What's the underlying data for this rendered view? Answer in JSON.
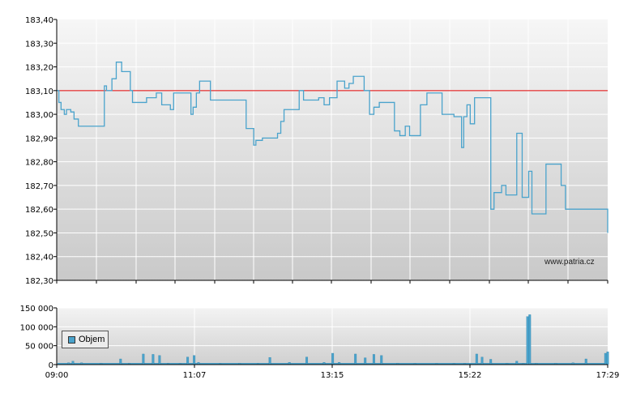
{
  "watermark": "www.patria.cz",
  "legend_label": "Objem",
  "colors": {
    "price_line": "#4aa3cc",
    "reference_line": "#e00000",
    "volume_bar": "#4aa3cc"
  },
  "chart_data": [
    {
      "type": "line",
      "title": "",
      "ylim": [
        182.3,
        183.4
      ],
      "y_ticks": [
        "183,40",
        "183,30",
        "183,20",
        "183,10",
        "183,00",
        "182,90",
        "182,80",
        "182,70",
        "182,60",
        "182,50",
        "182,40",
        "182,30"
      ],
      "reference_line": 183.1,
      "x_start": "09:00",
      "x_end": "17:29",
      "series": [
        {
          "points": [
            [
              "09:00",
              183.1
            ],
            [
              "09:02",
              183.05
            ],
            [
              "09:04",
              183.02
            ],
            [
              "09:07",
              183.0
            ],
            [
              "09:09",
              183.02
            ],
            [
              "09:13",
              183.01
            ],
            [
              "09:16",
              182.98
            ],
            [
              "09:20",
              182.95
            ],
            [
              "09:42",
              182.95
            ],
            [
              "09:44",
              183.12
            ],
            [
              "09:46",
              183.1
            ],
            [
              "09:51",
              183.15
            ],
            [
              "09:55",
              183.22
            ],
            [
              "10:00",
              183.18
            ],
            [
              "10:08",
              183.1
            ],
            [
              "10:10",
              183.05
            ],
            [
              "10:23",
              183.07
            ],
            [
              "10:32",
              183.09
            ],
            [
              "10:37",
              183.04
            ],
            [
              "10:45",
              183.02
            ],
            [
              "10:48",
              183.09
            ],
            [
              "11:00",
              183.09
            ],
            [
              "11:04",
              183.0
            ],
            [
              "11:06",
              183.03
            ],
            [
              "11:09",
              183.09
            ],
            [
              "11:12",
              183.14
            ],
            [
              "11:22",
              183.06
            ],
            [
              "11:52",
              183.06
            ],
            [
              "11:55",
              182.94
            ],
            [
              "12:02",
              182.87
            ],
            [
              "12:04",
              182.89
            ],
            [
              "12:10",
              182.9
            ],
            [
              "12:24",
              182.92
            ],
            [
              "12:27",
              182.97
            ],
            [
              "12:30",
              183.02
            ],
            [
              "12:44",
              183.1
            ],
            [
              "12:48",
              183.06
            ],
            [
              "13:02",
              183.07
            ],
            [
              "13:07",
              183.04
            ],
            [
              "13:12",
              183.07
            ],
            [
              "13:19",
              183.14
            ],
            [
              "13:26",
              183.11
            ],
            [
              "13:30",
              183.13
            ],
            [
              "13:34",
              183.16
            ],
            [
              "13:44",
              183.1
            ],
            [
              "13:49",
              183.0
            ],
            [
              "13:53",
              183.03
            ],
            [
              "13:58",
              183.05
            ],
            [
              "14:04",
              183.05
            ],
            [
              "14:12",
              182.93
            ],
            [
              "14:17",
              182.91
            ],
            [
              "14:22",
              182.95
            ],
            [
              "14:26",
              182.91
            ],
            [
              "14:33",
              182.91
            ],
            [
              "14:36",
              183.04
            ],
            [
              "14:42",
              183.09
            ],
            [
              "14:52",
              183.09
            ],
            [
              "14:56",
              183.0
            ],
            [
              "15:03",
              183.0
            ],
            [
              "15:07",
              182.99
            ],
            [
              "15:14",
              182.86
            ],
            [
              "15:16",
              182.99
            ],
            [
              "15:19",
              183.04
            ],
            [
              "15:22",
              182.96
            ],
            [
              "15:26",
              183.07
            ],
            [
              "15:39",
              183.07
            ],
            [
              "15:41",
              182.6
            ],
            [
              "15:44",
              182.67
            ],
            [
              "15:51",
              182.7
            ],
            [
              "15:55",
              182.66
            ],
            [
              "16:00",
              182.66
            ],
            [
              "16:05",
              182.92
            ],
            [
              "16:10",
              182.65
            ],
            [
              "16:16",
              182.76
            ],
            [
              "16:19",
              182.58
            ],
            [
              "16:30",
              182.58
            ],
            [
              "16:32",
              182.79
            ],
            [
              "16:43",
              182.79
            ],
            [
              "16:46",
              182.7
            ],
            [
              "16:50",
              182.6
            ],
            [
              "17:29",
              182.5
            ]
          ]
        }
      ]
    },
    {
      "type": "bar",
      "title": "",
      "ylim": [
        0,
        150000
      ],
      "y_ticks": [
        "150 000",
        "100 000",
        "50 000",
        "0"
      ],
      "x_ticks": [
        "09:00",
        "11:07",
        "13:15",
        "15:22",
        "17:29"
      ],
      "series": [
        {
          "name": "Objem",
          "points": [
            [
              "09:10",
              5000
            ],
            [
              "09:14",
              9000
            ],
            [
              "09:22",
              5000
            ],
            [
              "09:40",
              4000
            ],
            [
              "09:58",
              15000
            ],
            [
              "10:06",
              4000
            ],
            [
              "10:19",
              28000
            ],
            [
              "10:28",
              27000
            ],
            [
              "10:34",
              24000
            ],
            [
              "10:42",
              4000
            ],
            [
              "10:53",
              3000
            ],
            [
              "11:00",
              20000
            ],
            [
              "11:06",
              24000
            ],
            [
              "11:10",
              6000
            ],
            [
              "11:30",
              3000
            ],
            [
              "11:48",
              4000
            ],
            [
              "12:05",
              3000
            ],
            [
              "12:16",
              19000
            ],
            [
              "12:34",
              6000
            ],
            [
              "12:50",
              20000
            ],
            [
              "13:06",
              6000
            ],
            [
              "13:14",
              30000
            ],
            [
              "13:20",
              6000
            ],
            [
              "13:35",
              28000
            ],
            [
              "13:44",
              18000
            ],
            [
              "13:52",
              27000
            ],
            [
              "13:59",
              24000
            ],
            [
              "14:14",
              4000
            ],
            [
              "14:30",
              3000
            ],
            [
              "14:50",
              3000
            ],
            [
              "15:06",
              3000
            ],
            [
              "15:16",
              3000
            ],
            [
              "15:27",
              28000
            ],
            [
              "15:32",
              20000
            ],
            [
              "15:40",
              14000
            ],
            [
              "15:55",
              4000
            ],
            [
              "16:04",
              9000
            ],
            [
              "16:10",
              3000
            ],
            [
              "16:14",
              127000
            ],
            [
              "16:16",
              132000
            ],
            [
              "16:22",
              4000
            ],
            [
              "16:40",
              4000
            ],
            [
              "16:56",
              5000
            ],
            [
              "17:08",
              15000
            ],
            [
              "17:26",
              30000
            ],
            [
              "17:28",
              34000
            ]
          ]
        }
      ]
    }
  ]
}
